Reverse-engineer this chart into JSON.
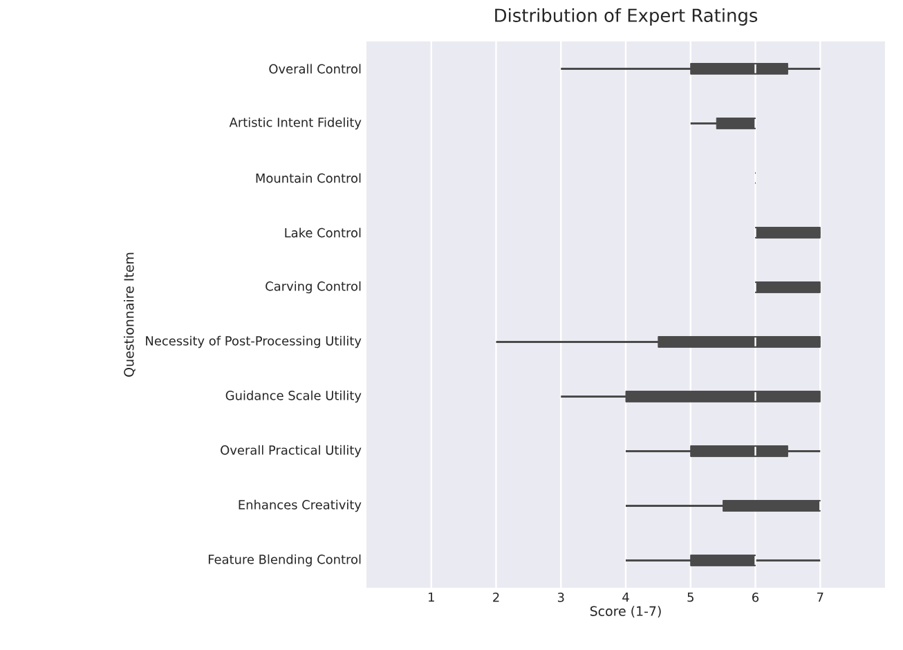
{
  "chart_data": {
    "type": "box",
    "orientation": "horizontal",
    "title": "Distribution of Expert Ratings",
    "xlabel": "Score (1-7)",
    "ylabel": "Questionnaire Item",
    "categories": [
      "Overall Control",
      "Artistic Intent Fidelity",
      "Mountain Control",
      "Lake Control",
      "Carving Control",
      "Necessity of Post-Processing Utility",
      "Guidance Scale Utility",
      "Overall Practical Utility",
      "Enhances Creativity",
      "Feature Blending Control"
    ],
    "color": "#4a4a4a",
    "boxes": [
      {
        "low": 3,
        "q1": 5,
        "median": 6,
        "q3": 6.5,
        "high": 7
      },
      {
        "low": 5,
        "q1": 5.4,
        "median": 6,
        "q3": 6,
        "high": 6
      },
      {
        "low": 6,
        "q1": 6,
        "median": 6,
        "q3": 6,
        "high": 6
      },
      {
        "low": 6,
        "q1": 6,
        "median": 6,
        "q3": 7,
        "high": 7
      },
      {
        "low": 6,
        "q1": 6,
        "median": 6,
        "q3": 7,
        "high": 7
      },
      {
        "low": 2,
        "q1": 4.5,
        "median": 6,
        "q3": 7,
        "high": 7
      },
      {
        "low": 3,
        "q1": 4,
        "median": 6,
        "q3": 7,
        "high": 7
      },
      {
        "low": 4,
        "q1": 5,
        "median": 6,
        "q3": 6.5,
        "high": 7
      },
      {
        "low": 4,
        "q1": 5.5,
        "median": 7,
        "q3": 7,
        "high": 7
      },
      {
        "low": 4,
        "q1": 5,
        "median": 6,
        "q3": 6,
        "high": 7
      }
    ],
    "xlim": [
      0,
      8
    ],
    "xticks": [
      1,
      2,
      3,
      4,
      5,
      6,
      7
    ],
    "grid": "x"
  }
}
